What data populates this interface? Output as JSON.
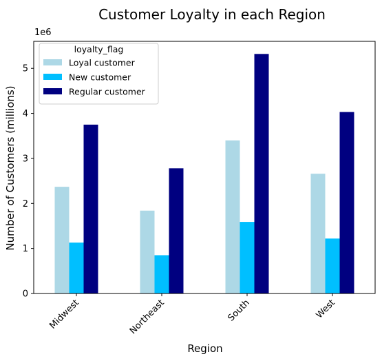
{
  "chart_data": {
    "type": "bar",
    "title": "Customer Loyalty in each Region",
    "xlabel": "Region",
    "ylabel": "Number of Customers (millions)",
    "y_offset_label": "1e6",
    "categories": [
      "Midwest",
      "Northeast",
      "South",
      "West"
    ],
    "ylim": [
      0,
      5.6
    ],
    "yticks": [
      0,
      1,
      2,
      3,
      4,
      5
    ],
    "legend": {
      "title": "loyalty_flag",
      "placement": "upper-left"
    },
    "series": [
      {
        "name": "Loyal customer",
        "color": "#add8e6",
        "values": [
          2.37,
          1.84,
          3.4,
          2.66
        ]
      },
      {
        "name": "New customer",
        "color": "#00bfff",
        "values": [
          1.13,
          0.85,
          1.59,
          1.22
        ]
      },
      {
        "name": "Regular customer",
        "color": "#000080",
        "values": [
          3.75,
          2.78,
          5.32,
          4.03
        ]
      }
    ],
    "grid": false
  }
}
